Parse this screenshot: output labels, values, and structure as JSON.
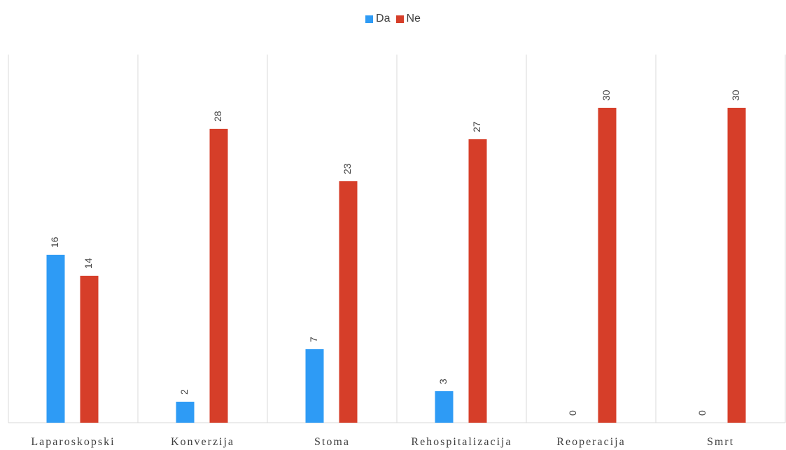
{
  "chart_data": {
    "type": "bar",
    "categories": [
      "Laparoskopski",
      "Konverzija",
      "Stoma",
      "Rehospitalizacija",
      "Reoperacija",
      "Smrt"
    ],
    "series": [
      {
        "name": "Da",
        "color": "#2e9bf5",
        "values": [
          16,
          2,
          7,
          3,
          0,
          0
        ]
      },
      {
        "name": "Ne",
        "color": "#d63e29",
        "values": [
          14,
          28,
          23,
          27,
          30,
          30
        ]
      }
    ],
    "ylim": [
      0,
      30
    ],
    "grid": false,
    "legend_position": "top-center",
    "data_labels": true
  }
}
